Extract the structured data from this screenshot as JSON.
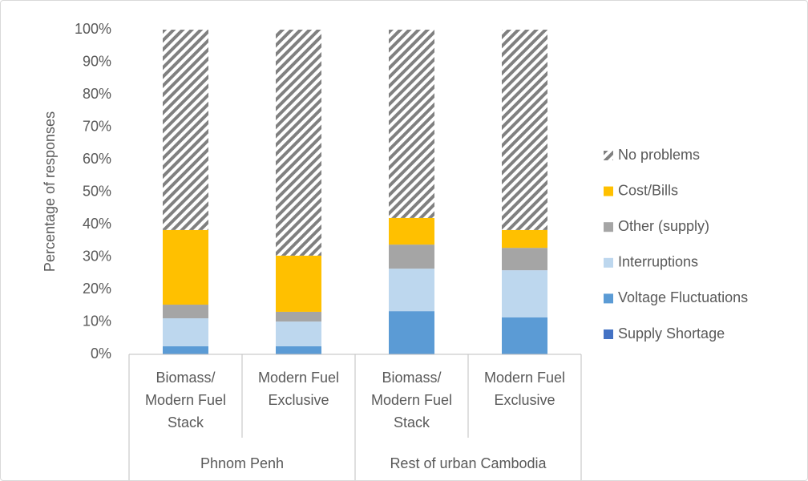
{
  "chart_data": {
    "type": "stacked_bar",
    "y_label": "Percentage of responses",
    "groups": [
      "Phnom Penh",
      "Rest of urban Cambodia"
    ],
    "categories": [
      "Biomass/ Modern Fuel Stack",
      "Modern Fuel Exclusive",
      "Biomass/ Modern Fuel Stack",
      "Modern Fuel Exclusive"
    ],
    "series": [
      {
        "name": "Supply Shortage",
        "color": "#4472c4",
        "values": [
          0,
          0,
          0,
          0
        ]
      },
      {
        "name": "Voltage Fluctuations",
        "color": "#5b9bd5",
        "values": [
          2.5,
          2.5,
          13.3,
          11.4
        ]
      },
      {
        "name": "Interruptions",
        "color": "#bdd7ee",
        "values": [
          8.6,
          7.6,
          13.1,
          14.5
        ]
      },
      {
        "name": "Other (supply)",
        "color": "#a5a5a5",
        "values": [
          4.2,
          3.0,
          7.4,
          6.9
        ]
      },
      {
        "name": "Cost/Bills",
        "color": "#ffc000",
        "values": [
          23.0,
          17.3,
          8.2,
          5.5
        ]
      },
      {
        "name": "No problems",
        "color": "#808080",
        "pattern": "hatch",
        "values": [
          61.7,
          69.6,
          58.0,
          61.7
        ]
      }
    ],
    "ylim": [
      0,
      100
    ],
    "yticks": [
      {
        "value": 0,
        "label": "0%"
      },
      {
        "value": 10,
        "label": "10%"
      },
      {
        "value": 20,
        "label": "20%"
      },
      {
        "value": 30,
        "label": "30%"
      },
      {
        "value": 40,
        "label": "40%"
      },
      {
        "value": 50,
        "label": "50%"
      },
      {
        "value": 60,
        "label": "60%"
      },
      {
        "value": 70,
        "label": "70%"
      },
      {
        "value": 80,
        "label": "80%"
      },
      {
        "value": 90,
        "label": "90%"
      },
      {
        "value": 100,
        "label": "100%"
      }
    ],
    "grid": false,
    "legend": "right"
  }
}
